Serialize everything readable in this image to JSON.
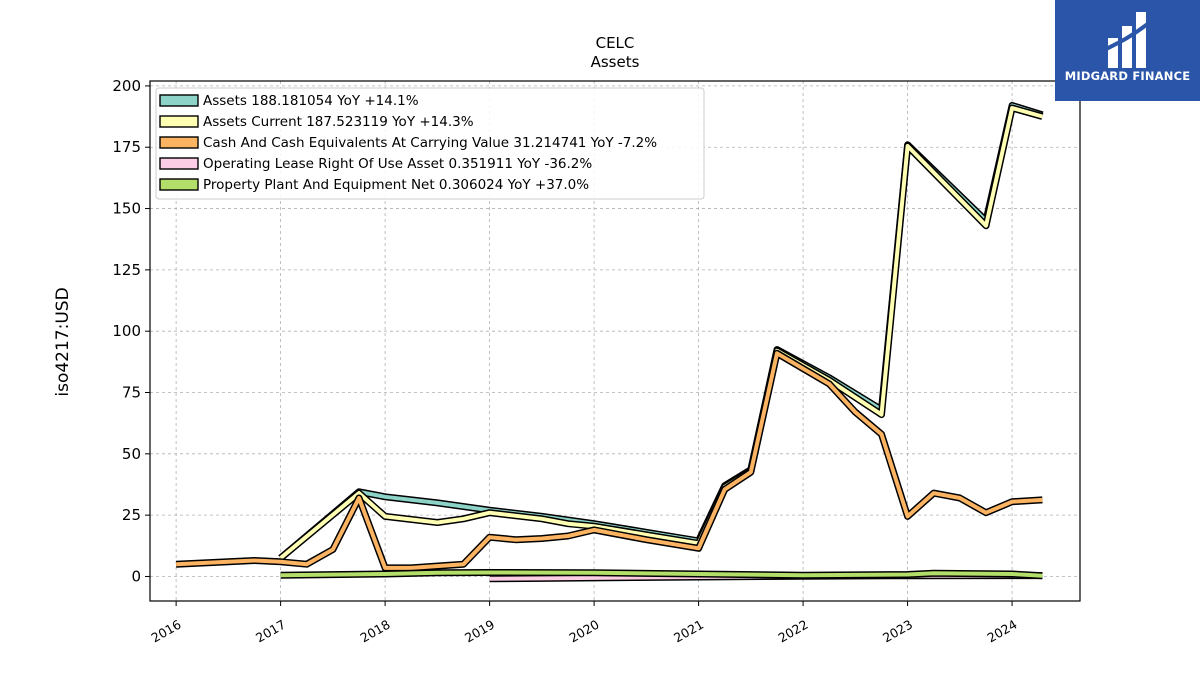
{
  "brand": {
    "name": "MIDGARD FINANCE",
    "icon": "midgard-logo-icon",
    "color": "#2a55a8"
  },
  "chart_data": {
    "type": "line",
    "title": "CELC",
    "subtitle": "Assets",
    "ylabel": "iso4217:USD",
    "xlabel": "",
    "xlim": [
      2015.75,
      2024.65
    ],
    "ylim": [
      -10,
      202
    ],
    "x_ticks": [
      "2016",
      "2017",
      "2018",
      "2019",
      "2020",
      "2021",
      "2022",
      "2023",
      "2024"
    ],
    "y_ticks": [
      0,
      25,
      50,
      75,
      100,
      125,
      150,
      175,
      200
    ],
    "grid": true,
    "legend_position": "top-left",
    "series": [
      {
        "name": "Assets",
        "legend": "Assets  188.181054 YoY +14.1%",
        "color": "#8dd3c7",
        "points": [
          [
            2017.0,
            7.5
          ],
          [
            2017.75,
            34.5
          ],
          [
            2018.0,
            32.5
          ],
          [
            2018.5,
            30
          ],
          [
            2019.0,
            27
          ],
          [
            2019.5,
            24.5
          ],
          [
            2020.0,
            21.5
          ],
          [
            2020.5,
            18
          ],
          [
            2021.0,
            14.5
          ],
          [
            2021.25,
            37
          ],
          [
            2021.5,
            43.5
          ],
          [
            2021.75,
            92.5
          ],
          [
            2022.25,
            81
          ],
          [
            2022.75,
            68
          ],
          [
            2023.0,
            176
          ],
          [
            2023.75,
            145
          ],
          [
            2024.0,
            192
          ],
          [
            2024.29,
            188.18
          ]
        ]
      },
      {
        "name": "Assets Current",
        "legend": "Assets Current  187.523119 YoY +14.3%",
        "color": "#ffffb3",
        "points": [
          [
            2017.0,
            7.5
          ],
          [
            2017.75,
            34
          ],
          [
            2018.0,
            24.5
          ],
          [
            2018.5,
            22
          ],
          [
            2018.75,
            23.5
          ],
          [
            2019.0,
            26
          ],
          [
            2019.5,
            23.5
          ],
          [
            2019.75,
            21.5
          ],
          [
            2020.0,
            20.5
          ],
          [
            2020.5,
            17
          ],
          [
            2021.0,
            13.5
          ],
          [
            2021.25,
            36.5
          ],
          [
            2021.5,
            43
          ],
          [
            2021.75,
            92
          ],
          [
            2022.25,
            80
          ],
          [
            2022.75,
            66
          ],
          [
            2023.0,
            175.5
          ],
          [
            2023.75,
            143
          ],
          [
            2024.0,
            191
          ],
          [
            2024.29,
            187.52
          ]
        ]
      },
      {
        "name": "Cash And Cash Equivalents At Carrying Value",
        "legend": "Cash And Cash Equivalents At Carrying Value  31.214741 YoY -7.2%",
        "color": "#fdb462",
        "points": [
          [
            2016.0,
            5
          ],
          [
            2016.75,
            6.5
          ],
          [
            2017.0,
            6
          ],
          [
            2017.25,
            5
          ],
          [
            2017.5,
            11
          ],
          [
            2017.75,
            32
          ],
          [
            2018.0,
            3.5
          ],
          [
            2018.25,
            3.5
          ],
          [
            2018.75,
            5
          ],
          [
            2019.0,
            16
          ],
          [
            2019.25,
            15
          ],
          [
            2019.5,
            15.5
          ],
          [
            2019.75,
            16.5
          ],
          [
            2020.0,
            19
          ],
          [
            2020.5,
            15
          ],
          [
            2021.0,
            11.5
          ],
          [
            2021.25,
            35.5
          ],
          [
            2021.5,
            42.5
          ],
          [
            2021.75,
            91
          ],
          [
            2022.25,
            78.5
          ],
          [
            2022.5,
            67
          ],
          [
            2022.75,
            58
          ],
          [
            2023.0,
            24.5
          ],
          [
            2023.25,
            34
          ],
          [
            2023.5,
            32
          ],
          [
            2023.75,
            26
          ],
          [
            2024.0,
            30.5
          ],
          [
            2024.29,
            31.21
          ]
        ]
      },
      {
        "name": "Operating Lease Right Of Use Asset",
        "legend": "Operating Lease Right Of Use Asset  0.351911 YoY -36.2%",
        "color": "#fccde5",
        "points": [
          [
            2019.0,
            -0.9
          ],
          [
            2019.5,
            -0.8
          ],
          [
            2020.0,
            -0.6
          ],
          [
            2021.0,
            -0.2
          ],
          [
            2022.0,
            0.1
          ],
          [
            2023.0,
            0.3
          ],
          [
            2024.29,
            0.35
          ]
        ]
      },
      {
        "name": "Property Plant And Equipment Net",
        "legend": "Property Plant And Equipment Net  0.306024 YoY +37.0%",
        "color": "#b3de69",
        "points": [
          [
            2017.0,
            0.5
          ],
          [
            2018.0,
            1
          ],
          [
            2018.5,
            1.5
          ],
          [
            2019.0,
            1.6
          ],
          [
            2020.0,
            1.5
          ],
          [
            2021.0,
            1
          ],
          [
            2022.0,
            0.5
          ],
          [
            2023.0,
            0.8
          ],
          [
            2023.25,
            1.3
          ],
          [
            2024.0,
            1
          ],
          [
            2024.29,
            0.31
          ]
        ]
      }
    ]
  }
}
